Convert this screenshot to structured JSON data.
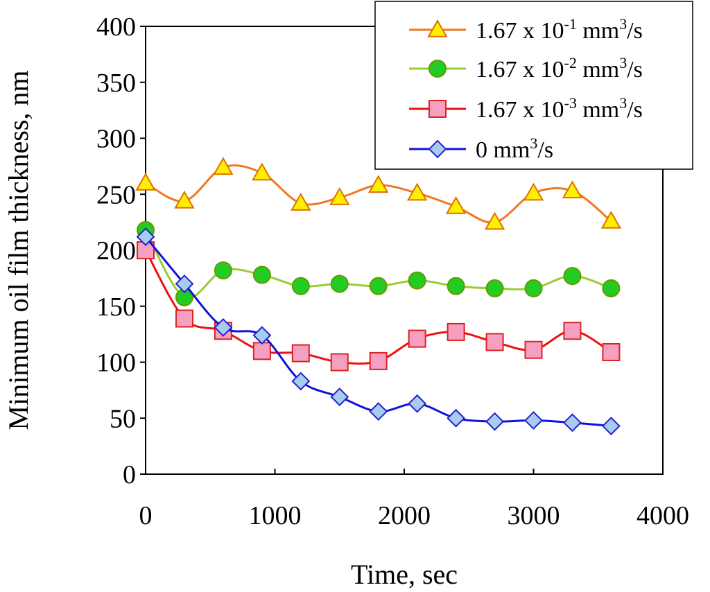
{
  "chart_data": {
    "type": "line",
    "title": "",
    "xlabel": "Time, sec",
    "ylabel": "Minimum oil film thickness, nm",
    "xlim": [
      0,
      4000
    ],
    "ylim": [
      0,
      400
    ],
    "xticks": [
      0,
      1000,
      2000,
      3000,
      4000
    ],
    "yticks": [
      0,
      50,
      100,
      150,
      200,
      250,
      300,
      350,
      400
    ],
    "grid": false,
    "smoothed": true,
    "legend_position": "top-right",
    "x": [
      0,
      300,
      600,
      900,
      1200,
      1500,
      1800,
      2100,
      2400,
      2700,
      3000,
      3300,
      3600
    ],
    "series": [
      {
        "name": "1.67 x 10^-1 mm^3/s",
        "legend": {
          "base": "1.67 x 10",
          "exp": "-1",
          "unit": " mm",
          "unit_exp": "3",
          "suffix": "/s"
        },
        "marker": "triangle",
        "line_color": "#f07820",
        "marker_fill": "#ffee00",
        "marker_stroke": "#e07000",
        "values": [
          260,
          244,
          274,
          269,
          242,
          247,
          258,
          251,
          239,
          225,
          251,
          253,
          226
        ]
      },
      {
        "name": "1.67 x 10^-2 mm^3/s",
        "legend": {
          "base": "1.67 x 10",
          "exp": "-2",
          "unit": " mm",
          "unit_exp": "3",
          "suffix": "/s"
        },
        "marker": "circle",
        "line_color": "#99cc33",
        "marker_fill": "#22cc22",
        "marker_stroke": "#669900",
        "values": [
          218,
          158,
          182,
          178,
          168,
          170,
          168,
          173,
          168,
          166,
          166,
          177,
          166
        ]
      },
      {
        "name": "1.67 x 10^-3 mm^3/s",
        "legend": {
          "base": "1.67 x 10",
          "exp": "-3",
          "unit": " mm",
          "unit_exp": "3",
          "suffix": "/s"
        },
        "marker": "square",
        "line_color": "#ee1111",
        "marker_fill": "#f5a0c0",
        "marker_stroke": "#dd2222",
        "values": [
          200,
          139,
          128,
          110,
          108,
          100,
          101,
          121,
          127,
          118,
          111,
          128,
          109
        ]
      },
      {
        "name": "0 mm^3/s",
        "legend": {
          "base": "0",
          "exp": "",
          "unit": " mm",
          "unit_exp": "3",
          "suffix": "/s"
        },
        "marker": "diamond",
        "line_color": "#1111dd",
        "marker_fill": "#a8ccf0",
        "marker_stroke": "#2222cc",
        "values": [
          212,
          170,
          131,
          124,
          83,
          69,
          56,
          63,
          50,
          47,
          48,
          46,
          43
        ]
      }
    ]
  }
}
